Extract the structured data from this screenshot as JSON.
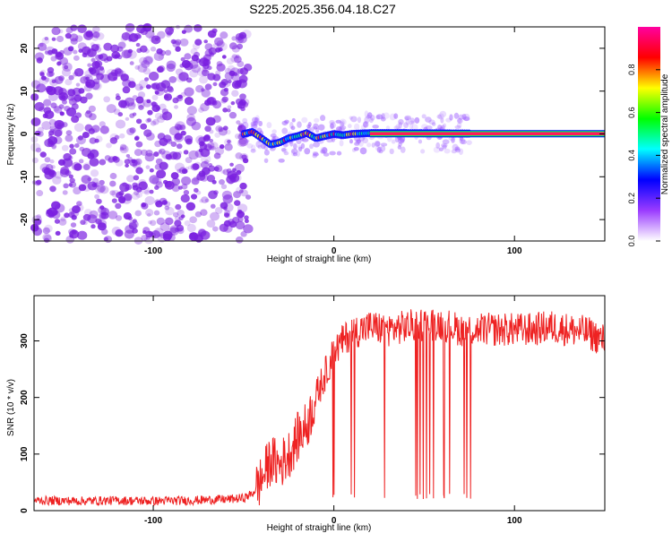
{
  "title": "S225.2025.356.04.18.C27",
  "chart_data": [
    {
      "type": "heatmap",
      "xlabel": "Height of straight line (km)",
      "ylabel": "Frequency (Hz)",
      "xlim": [
        -166,
        150
      ],
      "ylim": [
        -25,
        25
      ],
      "xticks": [
        "-100",
        "0",
        "100"
      ],
      "yticks": [
        "-20",
        "-10",
        "0",
        "10",
        "20"
      ],
      "colorbar": {
        "label": "Normalized spectral amplitude",
        "range": [
          0,
          1
        ],
        "ticks": [
          "0.0",
          "0.2",
          "0.4",
          "0.6",
          "0.8"
        ],
        "colors": [
          "#ffffff",
          "#9a3bff",
          "#0000ff",
          "#00ffff",
          "#00ff00",
          "#ffff00",
          "#ff0000",
          "#ff00a0"
        ]
      },
      "noise_region": {
        "x_range": [
          -166,
          -47
        ],
        "color": "#7a1fe0"
      },
      "signal_trace": [
        {
          "x": -50,
          "f": 0.0
        },
        {
          "x": -45,
          "f": 0.5
        },
        {
          "x": -40,
          "f": -1.0
        },
        {
          "x": -35,
          "f": -2.5
        },
        {
          "x": -30,
          "f": -2.0
        },
        {
          "x": -25,
          "f": -1.0
        },
        {
          "x": -20,
          "f": -0.5
        },
        {
          "x": -15,
          "f": 0.2
        },
        {
          "x": -10,
          "f": -1.0
        },
        {
          "x": -5,
          "f": -0.5
        },
        {
          "x": 0,
          "f": 0.0
        },
        {
          "x": 5,
          "f": -0.3
        },
        {
          "x": 10,
          "f": 0.0
        },
        {
          "x": 20,
          "f": 0.2
        },
        {
          "x": 40,
          "f": 0.2
        },
        {
          "x": 70,
          "f": 0.1
        },
        {
          "x": 150,
          "f": 0.0
        }
      ],
      "strong_signal_from_x": 20
    },
    {
      "type": "line",
      "xlabel": "Height of straight line (km)",
      "ylabel": "SNR (10 * v/v)",
      "xlim": [
        -166,
        150
      ],
      "ylim": [
        0,
        380
      ],
      "xticks": [
        "-100",
        "0",
        "100"
      ],
      "yticks": [
        "0",
        "100",
        "200",
        "300"
      ],
      "color": "#ee2222",
      "series": [
        {
          "x": [
            -166,
            -140,
            -120,
            -100,
            -80,
            -60,
            -50,
            -45,
            -40,
            -35,
            -30,
            -25,
            -20,
            -15,
            -10,
            -5,
            0,
            5,
            10,
            15,
            20,
            30,
            40,
            50,
            60,
            70,
            80,
            90,
            100,
            110,
            120,
            130,
            140,
            150
          ],
          "values": [
            18,
            17,
            18,
            17,
            18,
            20,
            22,
            30,
            55,
            90,
            80,
            100,
            130,
            150,
            200,
            240,
            280,
            300,
            315,
            320,
            325,
            320,
            325,
            330,
            330,
            320,
            320,
            320,
            320,
            320,
            325,
            320,
            315,
            300
          ]
        }
      ],
      "dropouts_x_range": [
        -5,
        80
      ]
    }
  ]
}
